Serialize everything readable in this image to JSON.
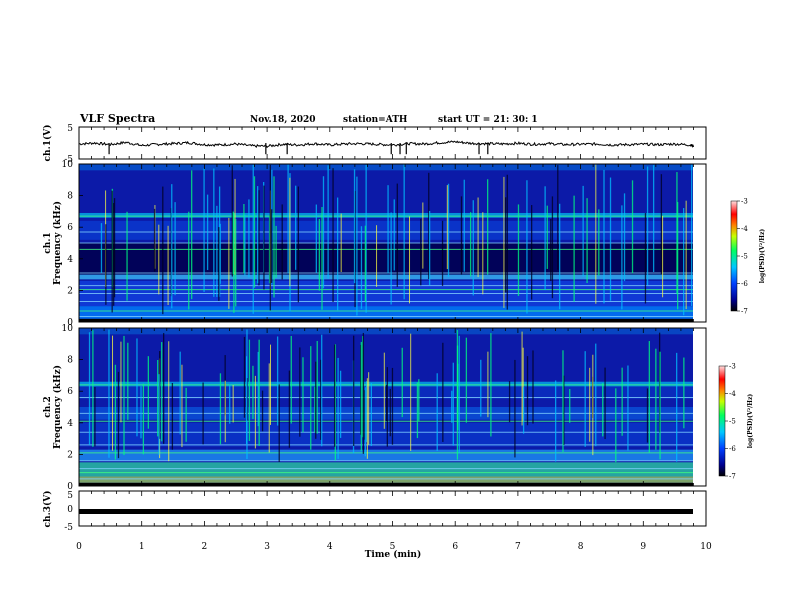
{
  "header": {
    "title": "VLF Spectra",
    "date": "Nov.18, 2020",
    "station": "station=ATH",
    "start": "start  UT =  21: 30: 1"
  },
  "chart_data": [
    {
      "type": "line",
      "name": "ch1-waveform",
      "ylabel": "ch.1(V)",
      "ylim": [
        -5,
        5
      ],
      "yticks": [
        "5",
        "-5"
      ],
      "xlim": [
        0,
        10
      ],
      "x": [
        0,
        0.25,
        0.5,
        0.75,
        1,
        1.25,
        1.5,
        1.75,
        2,
        2.25,
        2.5,
        2.75,
        3,
        3.25,
        3.5,
        3.75,
        4,
        4.25,
        4.5,
        4.75,
        5,
        5.25,
        5.5,
        5.75,
        6,
        6.25,
        6.5,
        6.75,
        7,
        7.25,
        7.5,
        7.75,
        8,
        8.25,
        8.5,
        8.75,
        9,
        9.25,
        9.5,
        9.75,
        9.8
      ],
      "values": [
        -0.3,
        0,
        -0.5,
        0.2,
        -0.8,
        -0.4,
        -0.2,
        0.1,
        -0.5,
        -0.6,
        -0.3,
        -0.9,
        -1.0,
        -0.4,
        -0.6,
        -0.2,
        -0.6,
        -0.3,
        -0.2,
        -0.4,
        -0.6,
        -0.2,
        -0.3,
        0.1,
        0.4,
        -0.1,
        -0.2,
        -0.3,
        -0.1,
        -0.4,
        -0.2,
        -0.5,
        -0.4,
        -0.3,
        -0.6,
        -0.5,
        -0.4,
        -0.5,
        -0.3,
        -0.6,
        -0.9
      ],
      "spikes_x": [
        0.48,
        2.98,
        3.32,
        4.98,
        5.12,
        5.22,
        6.38,
        6.52
      ]
    },
    {
      "type": "heatmap",
      "name": "ch1-spectrogram",
      "ylabel": "ch.1",
      "ylabel2": "Frequency  (kHz)",
      "ylim": [
        0,
        10
      ],
      "yticks": [
        "0",
        "2",
        "4",
        "6",
        "8",
        "10"
      ],
      "xlim": [
        0,
        10
      ],
      "colorbar": {
        "label": "log(PSD)(V²/Hz)",
        "range": [
          -7,
          -3
        ],
        "ticks": [
          "-3",
          "-4",
          "-5",
          "-6",
          "-7"
        ]
      }
    },
    {
      "type": "heatmap",
      "name": "ch2-spectrogram",
      "ylabel": "ch.2",
      "ylabel2": "Frequency  (kHz)",
      "ylim": [
        0,
        10
      ],
      "yticks": [
        "0",
        "2",
        "4",
        "6",
        "8",
        "10"
      ],
      "xlim": [
        0,
        10
      ],
      "colorbar": {
        "label": "log(PSD)(V²/Hz)",
        "range": [
          -7,
          -3
        ],
        "ticks": [
          "-3",
          "-4",
          "-5",
          "-6",
          "-7"
        ]
      }
    },
    {
      "type": "line",
      "name": "ch3-waveform",
      "ylabel": "ch.3(V)",
      "ylim": [
        -5,
        5
      ],
      "yticks": [
        "5",
        "0",
        "-5"
      ],
      "xlim": [
        0,
        10
      ],
      "x": [
        0,
        9.8
      ],
      "values": [
        -1.5,
        -1.5
      ]
    }
  ],
  "xaxis": {
    "label": "Time  (min)",
    "ticks": [
      "0",
      "1",
      "2",
      "3",
      "4",
      "5",
      "6",
      "7",
      "8",
      "9",
      "10"
    ]
  },
  "colors": {
    "spectro_background": "#0a0a8c",
    "colormap": [
      "#000030",
      "#0000a0",
      "#0050ff",
      "#00c8ff",
      "#00ff80",
      "#c8ff00",
      "#ffff00",
      "#ff8000",
      "#ff0000",
      "#ffb4b4",
      "#ffffff"
    ]
  }
}
